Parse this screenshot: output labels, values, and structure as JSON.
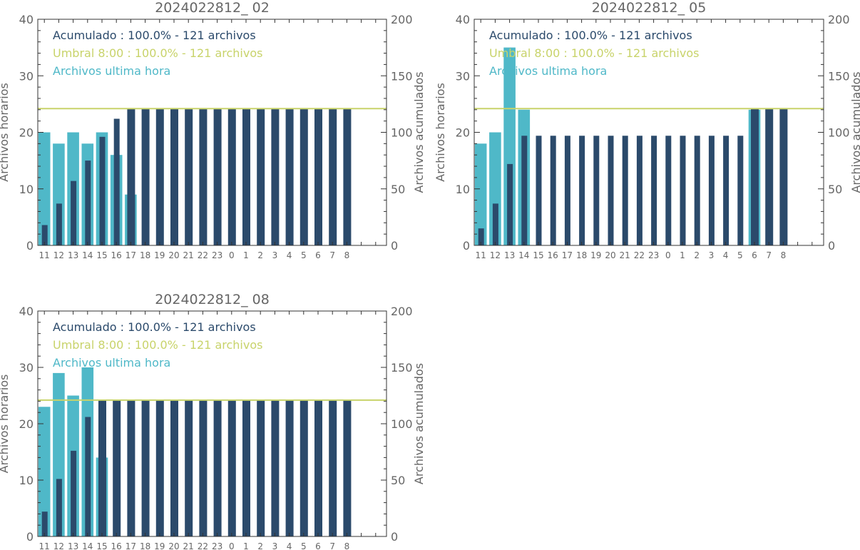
{
  "colors": {
    "hourly": "#4fb8c8",
    "cumulative": "#2b4a6b",
    "threshold": "#c8d36a",
    "axis": "#333333",
    "tick_text": "#666666",
    "title_text": "#666666",
    "legend_acum": "#2b4a6b",
    "legend_umbral": "#c8d36a",
    "legend_hourly": "#4fb8c8"
  },
  "chart_data": [
    {
      "type": "bar",
      "title": "2024022812_ 02",
      "ylabel_left": "Archivos horarios",
      "ylabel_right": "Archivos acumulados",
      "ylim_left": [
        0,
        40
      ],
      "ylim_right": [
        0,
        200
      ],
      "yticks_left": [
        "0",
        "10",
        "20",
        "30",
        "40"
      ],
      "yticks_right": [
        "0",
        "50",
        "100",
        "150",
        "200"
      ],
      "categories": [
        "11",
        "12",
        "13",
        "14",
        "15",
        "16",
        "17",
        "18",
        "19",
        "20",
        "21",
        "22",
        "23",
        "0",
        "1",
        "2",
        "3",
        "4",
        "5",
        "6",
        "7",
        "8"
      ],
      "legend": [
        "Acumulado : 100.0% - 121 archivos",
        "Umbral 8:00 : 100.0% - 121 archivos",
        "Archivos ultima hora"
      ],
      "threshold": 121,
      "series": [
        {
          "name": "Archivos ultima hora",
          "axis": "left",
          "values": [
            20,
            18,
            20,
            18,
            20,
            16,
            9,
            0,
            0,
            0,
            0,
            0,
            0,
            0,
            0,
            0,
            0,
            0,
            0,
            0,
            0,
            0
          ]
        },
        {
          "name": "Acumulado",
          "axis": "right",
          "values": [
            18,
            37,
            57,
            75,
            96,
            112,
            121,
            121,
            121,
            121,
            121,
            121,
            121,
            121,
            121,
            121,
            121,
            121,
            121,
            121,
            121,
            121
          ]
        }
      ]
    },
    {
      "type": "bar",
      "title": "2024022812_ 05",
      "ylabel_left": "Archivos horarios",
      "ylabel_right": "Archivos acumulados",
      "ylim_left": [
        0,
        40
      ],
      "ylim_right": [
        0,
        200
      ],
      "yticks_left": [
        "0",
        "10",
        "20",
        "30",
        "40"
      ],
      "yticks_right": [
        "0",
        "50",
        "100",
        "150",
        "200"
      ],
      "categories": [
        "11",
        "12",
        "13",
        "14",
        "15",
        "16",
        "17",
        "18",
        "19",
        "20",
        "21",
        "22",
        "23",
        "0",
        "1",
        "2",
        "3",
        "4",
        "5",
        "6",
        "7",
        "8"
      ],
      "legend": [
        "Acumulado : 100.0% - 121 archivos",
        "Umbral 8:00 : 100.0% - 121 archivos",
        "Archivos ultima hora"
      ],
      "threshold": 121,
      "series": [
        {
          "name": "Archivos ultima hora",
          "axis": "left",
          "values": [
            18,
            20,
            35,
            24,
            0,
            0,
            0,
            0,
            0,
            0,
            0,
            0,
            0,
            0,
            0,
            0,
            0,
            0,
            0,
            24,
            0,
            0
          ]
        },
        {
          "name": "Acumulado",
          "axis": "right",
          "values": [
            15,
            37,
            72,
            97,
            97,
            97,
            97,
            97,
            97,
            97,
            97,
            97,
            97,
            97,
            97,
            97,
            97,
            97,
            97,
            121,
            121,
            121
          ]
        }
      ]
    },
    {
      "type": "bar",
      "title": "2024022812_ 08",
      "ylabel_left": "Archivos horarios",
      "ylabel_right": "Archivos acumulados",
      "ylim_left": [
        0,
        40
      ],
      "ylim_right": [
        0,
        200
      ],
      "yticks_left": [
        "0",
        "10",
        "20",
        "30",
        "40"
      ],
      "yticks_right": [
        "0",
        "50",
        "100",
        "150",
        "200"
      ],
      "categories": [
        "11",
        "12",
        "13",
        "14",
        "15",
        "16",
        "17",
        "18",
        "19",
        "20",
        "21",
        "22",
        "23",
        "0",
        "1",
        "2",
        "3",
        "4",
        "5",
        "6",
        "7",
        "8"
      ],
      "legend": [
        "Acumulado : 100.0% - 121 archivos",
        "Umbral 8:00 : 100.0% - 121 archivos",
        "Archivos ultima hora"
      ],
      "threshold": 121,
      "series": [
        {
          "name": "Archivos ultima hora",
          "axis": "left",
          "values": [
            23,
            29,
            25,
            30,
            14,
            0,
            0,
            0,
            0,
            0,
            0,
            0,
            0,
            0,
            0,
            0,
            0,
            0,
            0,
            0,
            0,
            0
          ]
        },
        {
          "name": "Acumulado",
          "axis": "right",
          "values": [
            22,
            51,
            76,
            106,
            121,
            121,
            121,
            121,
            121,
            121,
            121,
            121,
            121,
            121,
            121,
            121,
            121,
            121,
            121,
            121,
            121,
            121
          ]
        }
      ]
    }
  ]
}
